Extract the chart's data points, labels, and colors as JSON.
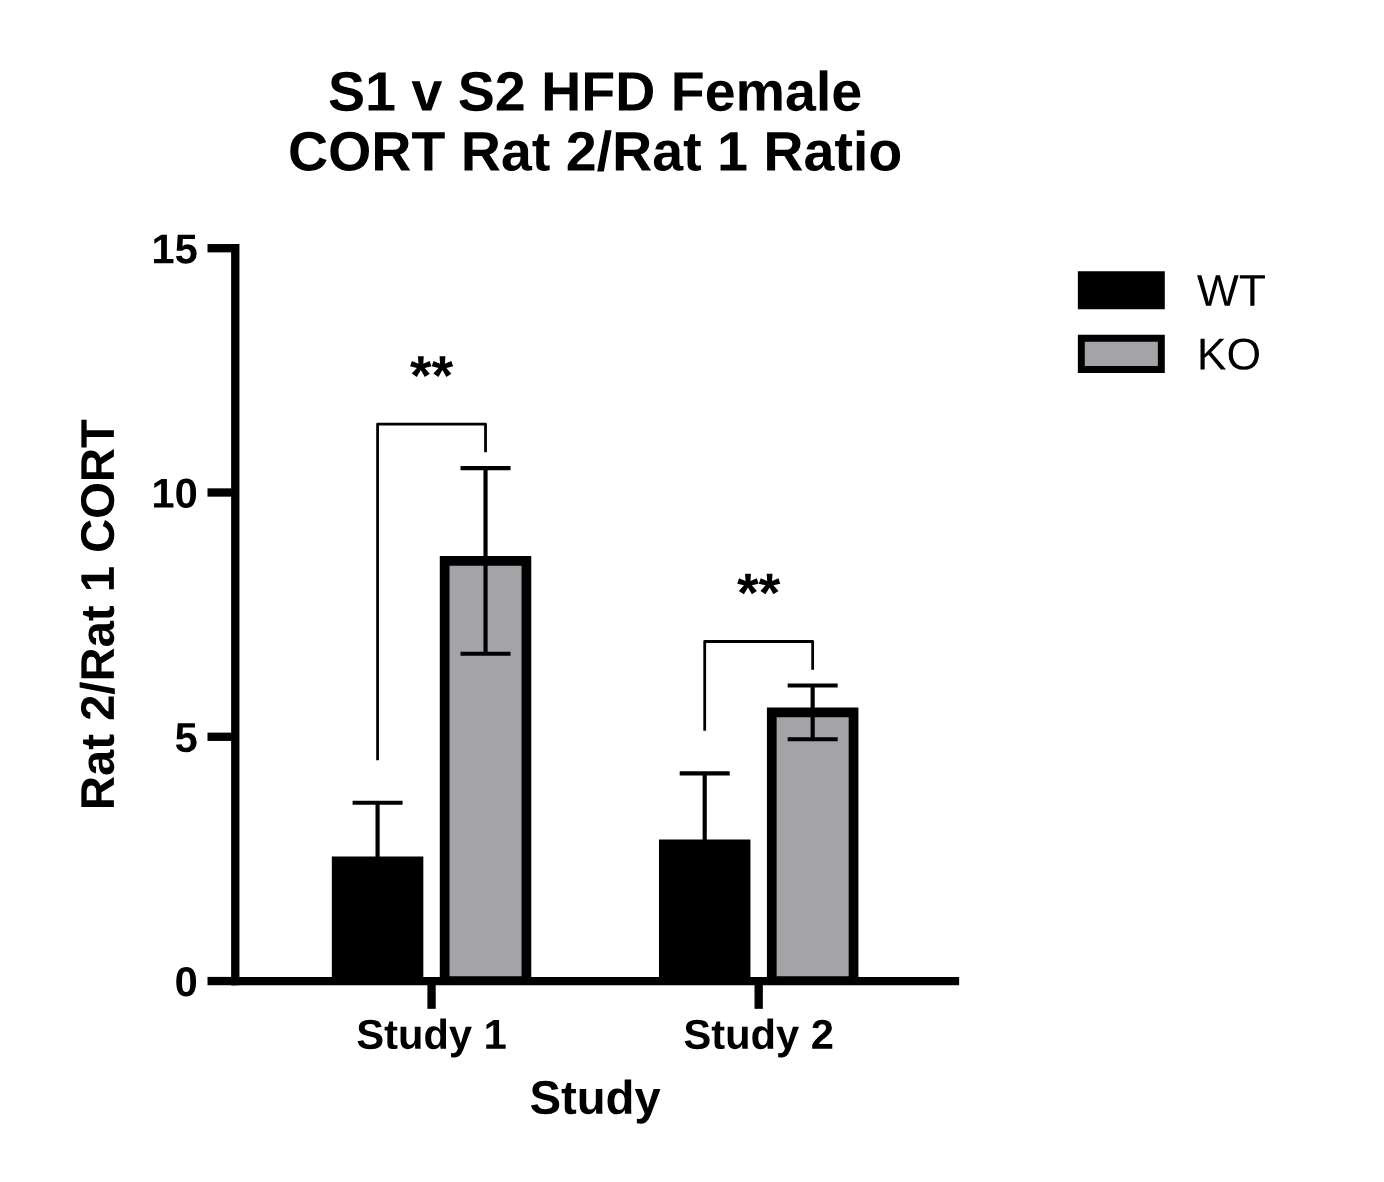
{
  "chart_data": {
    "type": "bar",
    "title": "S1 v S2 HFD Female\nCORT Rat 2/Rat 1 Ratio",
    "xlabel": "Study",
    "ylabel": "Rat 2/Rat 1 CORT",
    "categories": [
      "Study 1",
      "Study 2"
    ],
    "series": [
      {
        "name": "WT",
        "color": "#000000",
        "values": [
          2.45,
          2.8
        ],
        "errors": [
          1.2,
          1.45
        ]
      },
      {
        "name": "KO",
        "color": "#a3a3a8",
        "values": [
          8.6,
          5.5
        ],
        "errors": [
          1.9,
          0.55
        ]
      }
    ],
    "ylim": [
      0,
      15
    ],
    "yticks": [
      0,
      5,
      10,
      15
    ],
    "grid": false,
    "legend": "top right",
    "annotations": [
      "**",
      "**"
    ]
  }
}
